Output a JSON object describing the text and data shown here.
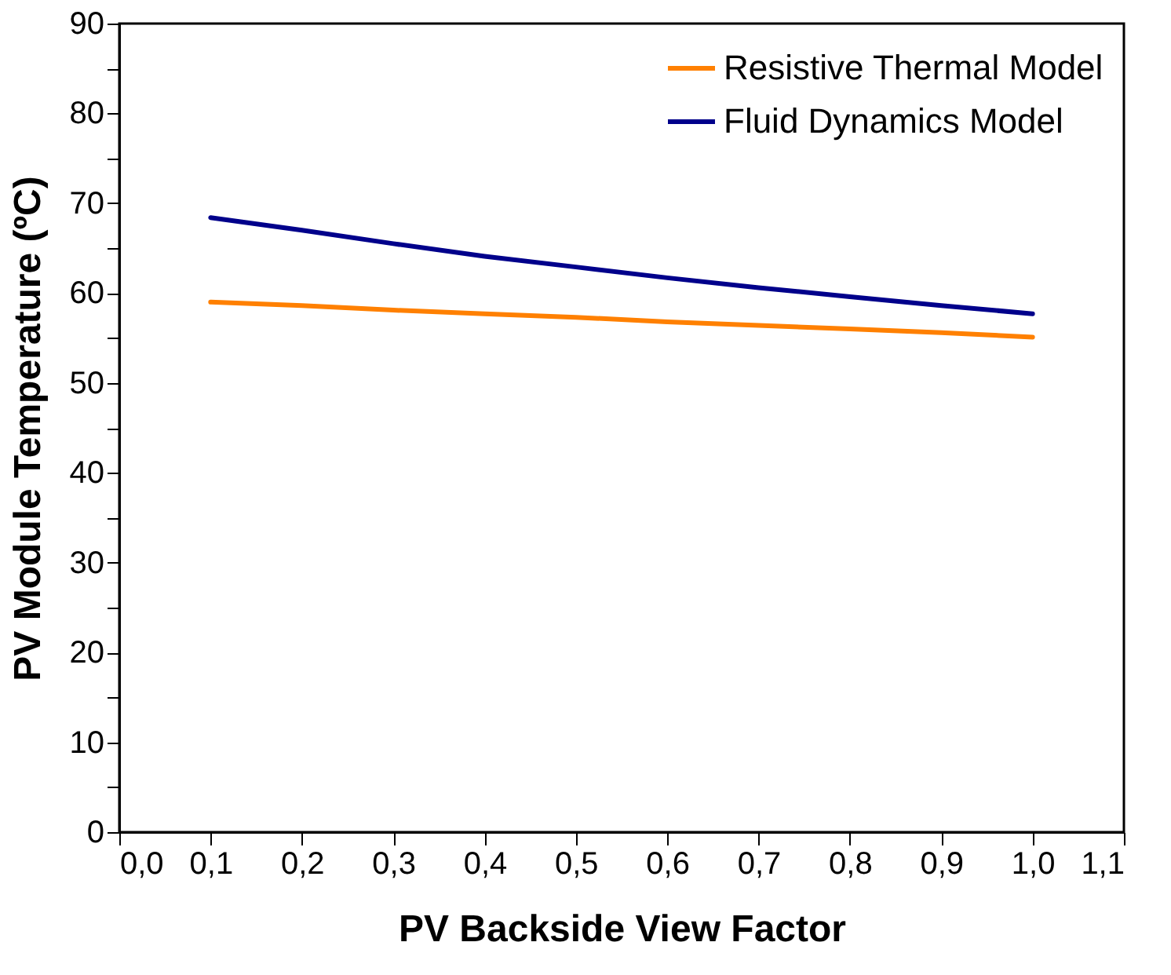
{
  "chart_data": {
    "type": "line",
    "xlabel": "PV Backside View Factor",
    "ylabel": "PV Module Temperature (ºC)",
    "x": [
      0.1,
      0.2,
      0.3,
      0.4,
      0.5,
      0.6,
      0.7,
      0.8,
      0.9,
      1.0
    ],
    "series": [
      {
        "name": "Resistive Thermal Model",
        "color": "#ff8000",
        "values": [
          59.0,
          58.6,
          58.1,
          57.7,
          57.3,
          56.8,
          56.4,
          56.0,
          55.6,
          55.1
        ]
      },
      {
        "name": "Fluid Dynamics Model",
        "color": "#00008b",
        "values": [
          68.4,
          67.0,
          65.5,
          64.1,
          62.9,
          61.7,
          60.6,
          59.6,
          58.6,
          57.7
        ]
      }
    ],
    "xlim": [
      0.0,
      1.1
    ],
    "xticks": [
      {
        "value": 0.0,
        "label": "0,0"
      },
      {
        "value": 0.1,
        "label": "0,1"
      },
      {
        "value": 0.2,
        "label": "0,2"
      },
      {
        "value": 0.3,
        "label": "0,3"
      },
      {
        "value": 0.4,
        "label": "0,4"
      },
      {
        "value": 0.5,
        "label": "0,5"
      },
      {
        "value": 0.6,
        "label": "0,6"
      },
      {
        "value": 0.7,
        "label": "0,7"
      },
      {
        "value": 0.8,
        "label": "0,8"
      },
      {
        "value": 0.9,
        "label": "0,9"
      },
      {
        "value": 1.0,
        "label": "1,0"
      },
      {
        "value": 1.1,
        "label": "1,1"
      }
    ],
    "ylim": [
      0,
      90
    ],
    "yticks": [
      0,
      {
        "value": 5,
        "label": null
      },
      10,
      {
        "value": 15,
        "label": null
      },
      20,
      {
        "value": 25,
        "label": null
      },
      30,
      {
        "value": 35,
        "label": null
      },
      40,
      {
        "value": 45,
        "label": null
      },
      50,
      {
        "value": 55,
        "label": null
      },
      60,
      {
        "value": 65,
        "label": null
      },
      70,
      {
        "value": 75,
        "label": null
      },
      80,
      {
        "value": 85,
        "label": null
      },
      90
    ],
    "legend": "top right",
    "grid": false,
    "marker": "none",
    "line_style": "solid"
  }
}
